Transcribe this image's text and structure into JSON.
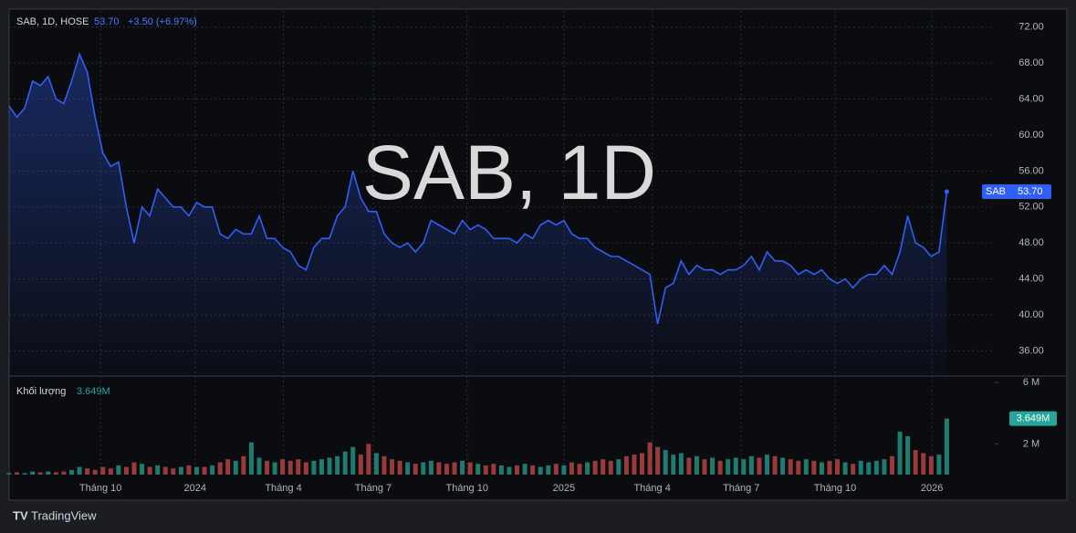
{
  "chart_data": [
    {
      "type": "area",
      "title": "SAB, 1D, HOSE",
      "last_label": "53.70",
      "change_label": "+3.50 (+6.97%)",
      "watermark": "SAB, 1D",
      "tag": "SAB",
      "color": "#2f5ff5",
      "values": [
        63.2,
        62,
        63,
        66,
        65.5,
        66.5,
        64,
        63.5,
        66,
        69,
        67,
        62,
        58,
        56.5,
        57,
        52,
        48,
        52,
        51,
        54,
        53,
        52,
        52,
        51,
        52.5,
        52,
        52,
        49,
        48.5,
        49.5,
        49,
        49,
        51,
        48.5,
        48.5,
        47.5,
        47,
        45.5,
        45,
        47.5,
        48.5,
        48.5,
        51,
        52,
        56,
        53,
        51.5,
        51.5,
        49,
        48,
        47.5,
        48,
        47,
        48,
        50.5,
        50,
        49.5,
        49,
        50.5,
        49.5,
        50,
        49.5,
        48.5,
        48.5,
        48.5,
        48,
        49,
        48.5,
        50,
        50.5,
        50,
        50.5,
        49,
        48.5,
        48.5,
        47.5,
        47,
        46.5,
        46.5,
        46,
        45.5,
        45,
        44.5,
        39,
        43,
        43.5,
        46,
        44.5,
        45.5,
        45,
        45,
        44.5,
        45,
        45,
        45.5,
        46.5,
        45,
        47,
        46,
        46,
        45.5,
        44.5,
        45,
        44.5,
        45,
        44,
        43.5,
        44,
        43,
        44,
        44.5,
        44.5,
        45.5,
        44.5,
        47,
        51,
        48,
        47.5,
        46.5,
        47,
        53.7
      ],
      "xlim": [
        0,
        121
      ],
      "xticks": [
        {
          "value": 11.7,
          "label": "Tháng 10"
        },
        {
          "value": 23.8,
          "label": "2024"
        },
        {
          "value": 35.1,
          "label": "Tháng 4"
        },
        {
          "value": 46.6,
          "label": "Tháng 7"
        },
        {
          "value": 58.6,
          "label": "Tháng 10"
        },
        {
          "value": 71,
          "label": "2025"
        },
        {
          "value": 82.3,
          "label": "Tháng 4"
        },
        {
          "value": 93.7,
          "label": "Tháng 7"
        },
        {
          "value": 105.7,
          "label": "Tháng 10"
        },
        {
          "value": 118.1,
          "label": "2026"
        }
      ],
      "ylim": [
        33.2,
        73.8
      ],
      "yticks": [
        {
          "value": 36,
          "label": "36.00"
        },
        {
          "value": 40,
          "label": "40.00"
        },
        {
          "value": 44,
          "label": "44.00"
        },
        {
          "value": 48,
          "label": "48.00"
        },
        {
          "value": 52,
          "label": "52.00"
        },
        {
          "value": 56,
          "label": "56.00"
        },
        {
          "value": 60,
          "label": "60.00"
        },
        {
          "value": 64,
          "label": "64.00"
        },
        {
          "value": 68,
          "label": "68.00"
        },
        {
          "value": 72,
          "label": "72.00"
        }
      ],
      "grid": true
    },
    {
      "type": "bar",
      "title": "Khối lượng",
      "last_label": "3.649M",
      "up_color": "#1f7a70",
      "down_color": "#9a3b3b",
      "tag_color": "#26a69a",
      "values": [
        0.1,
        0.15,
        0.1,
        0.2,
        0.15,
        0.2,
        0.15,
        0.2,
        0.3,
        0.5,
        0.4,
        0.3,
        0.5,
        0.4,
        0.6,
        0.5,
        0.8,
        0.7,
        0.5,
        0.6,
        0.5,
        0.4,
        0.5,
        0.6,
        0.5,
        0.5,
        0.6,
        0.8,
        1.0,
        0.9,
        1.2,
        2.1,
        1.1,
        0.9,
        0.8,
        1.0,
        0.9,
        1.0,
        0.8,
        0.9,
        1.0,
        1.1,
        1.2,
        1.5,
        1.8,
        1.3,
        2.0,
        1.4,
        1.2,
        1.0,
        0.9,
        0.8,
        0.7,
        0.8,
        0.9,
        0.8,
        0.7,
        0.8,
        0.9,
        0.8,
        0.7,
        0.6,
        0.7,
        0.6,
        0.5,
        0.6,
        0.7,
        0.6,
        0.5,
        0.6,
        0.7,
        0.6,
        0.8,
        0.7,
        0.8,
        0.9,
        1.0,
        0.9,
        1.0,
        1.2,
        1.3,
        1.4,
        2.1,
        1.8,
        1.6,
        1.3,
        1.4,
        1.1,
        1.2,
        1.0,
        1.1,
        0.9,
        1.0,
        1.1,
        1.0,
        1.2,
        1.1,
        1.3,
        1.2,
        1.1,
        1.0,
        0.9,
        1.0,
        0.9,
        0.8,
        0.9,
        1.0,
        0.8,
        0.7,
        0.9,
        0.8,
        0.9,
        1.0,
        1.2,
        2.8,
        2.5,
        1.6,
        1.4,
        1.2,
        1.3,
        3.649
      ],
      "ylim": [
        0,
        6.36
      ],
      "yticks": [
        {
          "value": 2,
          "label": "2 M"
        },
        {
          "value": 6,
          "label": "6 M"
        }
      ]
    }
  ],
  "footer": "TradingView"
}
